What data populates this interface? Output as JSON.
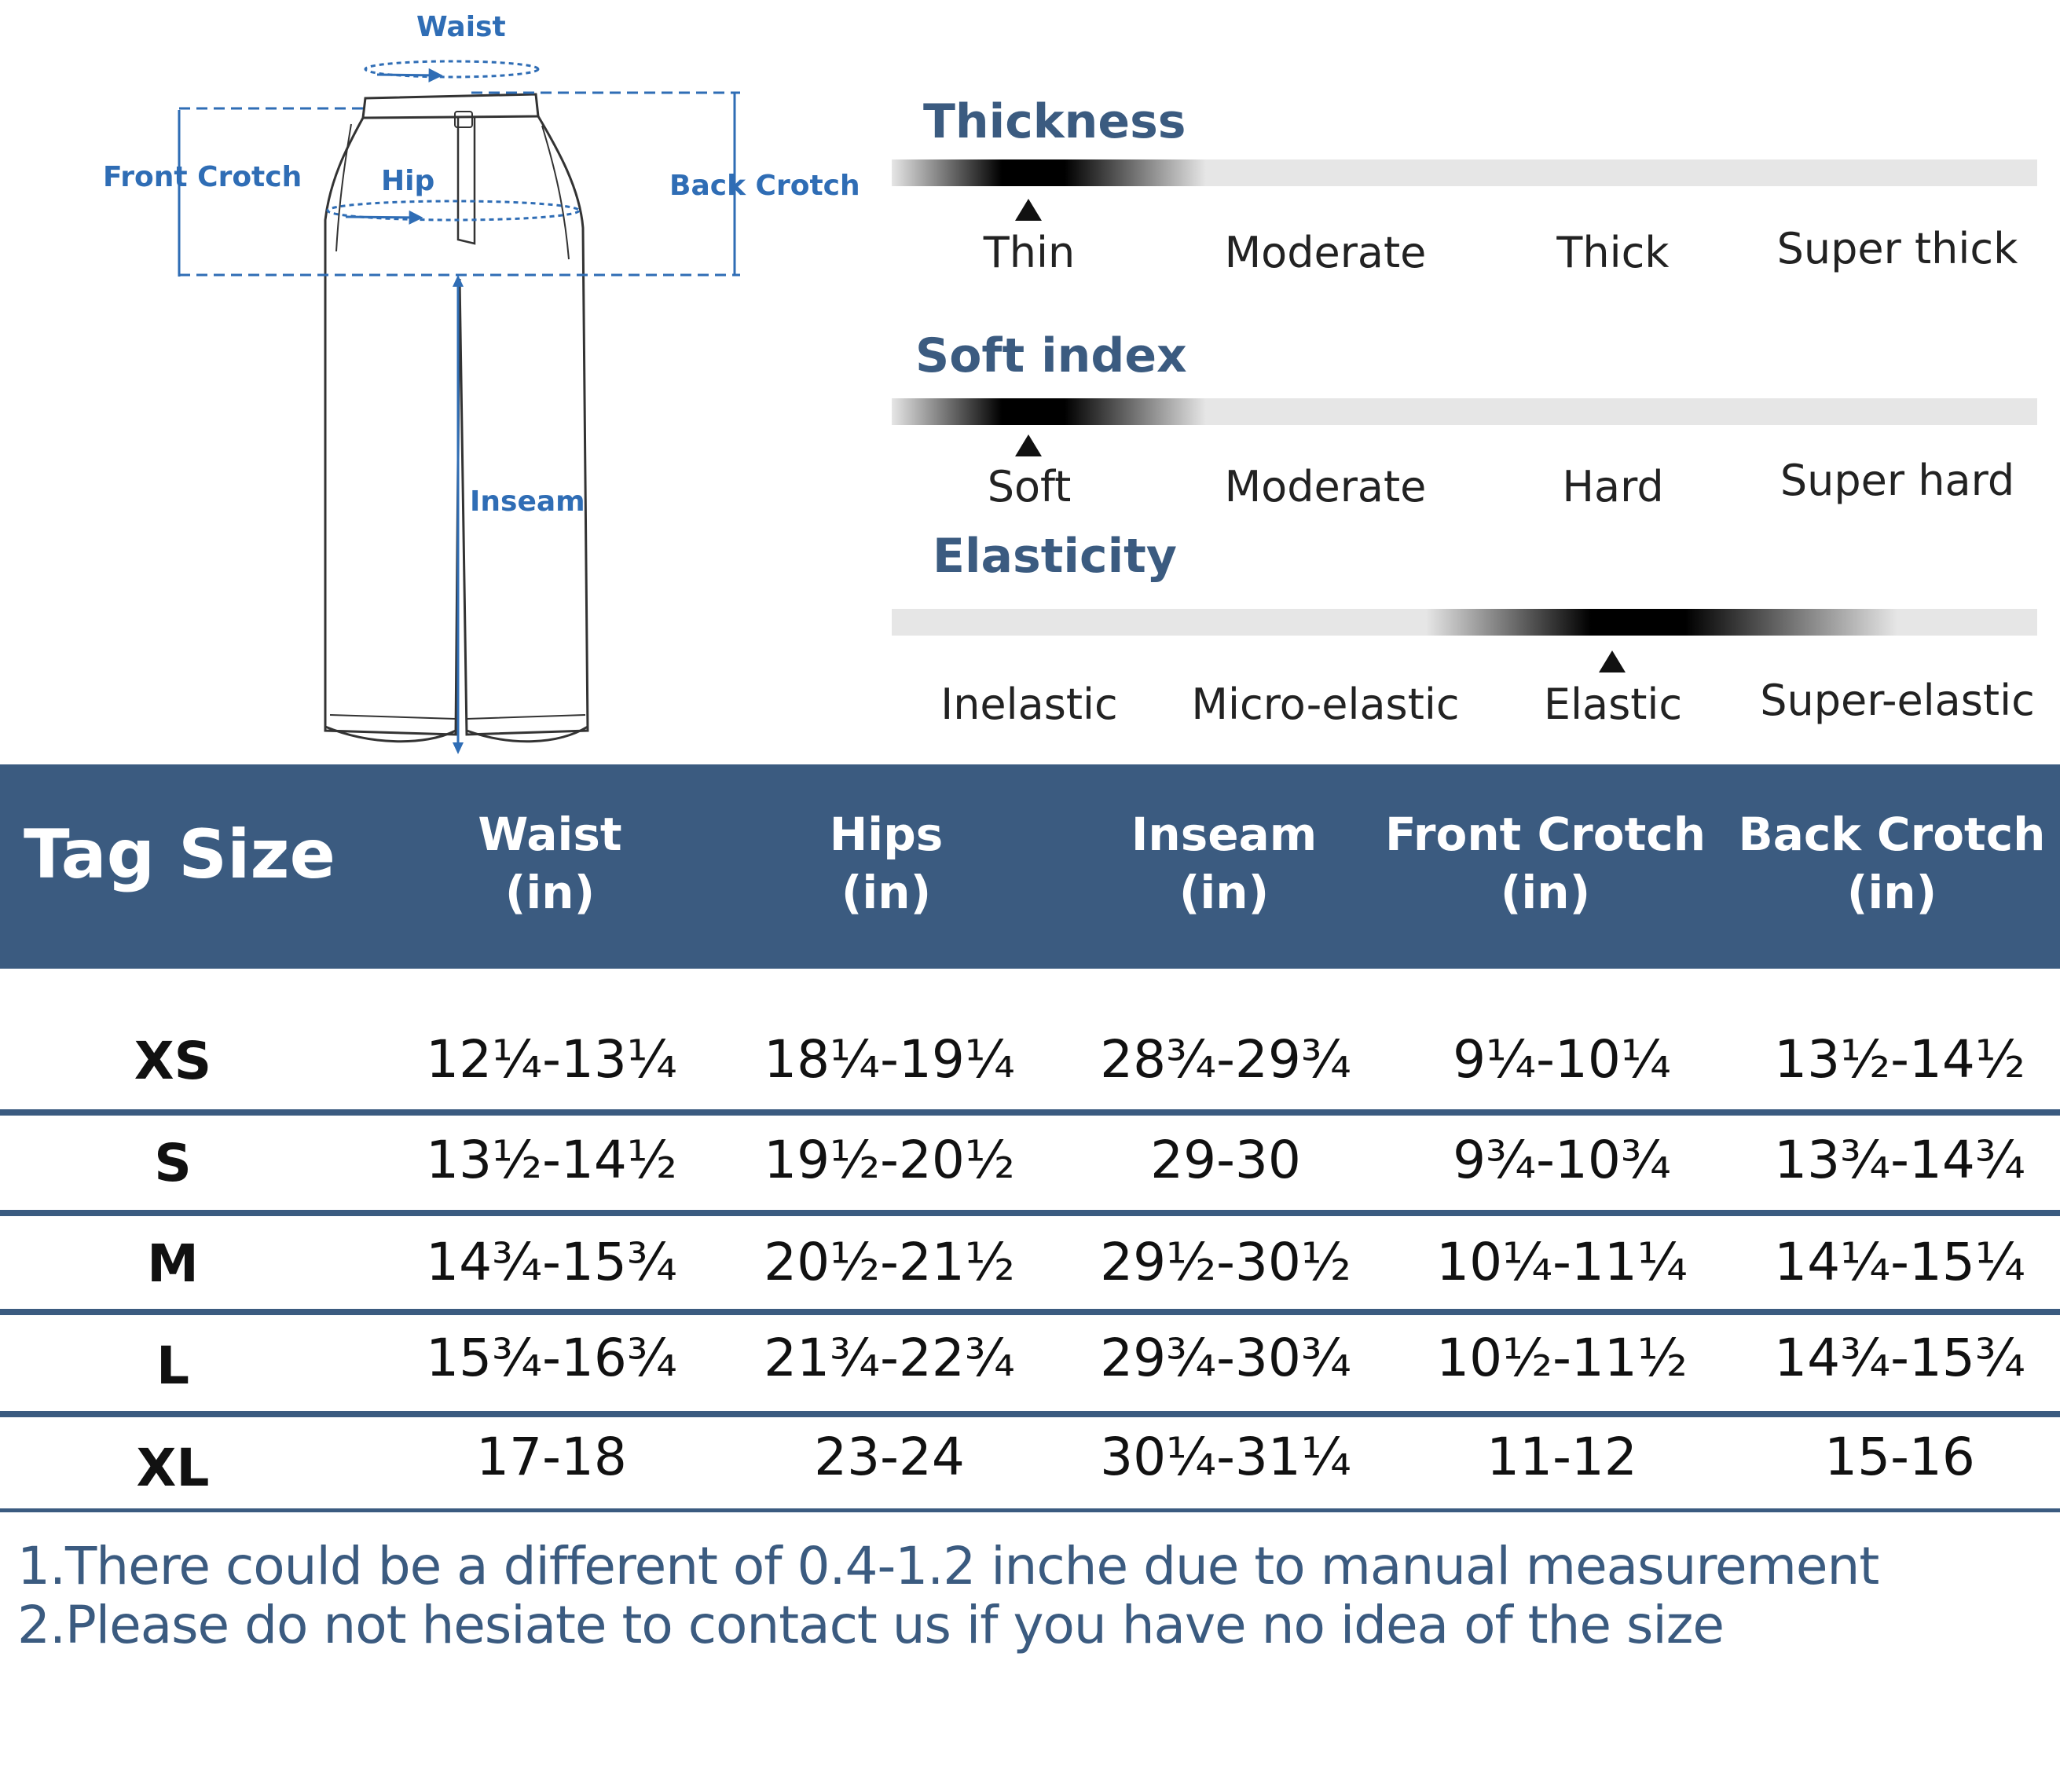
{
  "diagram": {
    "labels": {
      "waist": "Waist",
      "front_crotch": "Front Crotch",
      "hip": "Hip",
      "back_crotch": "Back Crotch",
      "inseam": "Inseam"
    },
    "colors": {
      "measure_line": "#2f6db5",
      "outline": "#333333"
    }
  },
  "scales": [
    {
      "title": "Thickness",
      "options": [
        "Thin",
        "Moderate",
        "Thick",
        "Super thick"
      ],
      "selected_index": 0
    },
    {
      "title": "Soft index",
      "options": [
        "Soft",
        "Moderate",
        "Hard",
        "Super hard"
      ],
      "selected_index": 0
    },
    {
      "title": "Elasticity",
      "options": [
        "Inelastic",
        "Micro-elastic",
        "Elastic",
        "Super-elastic"
      ],
      "selected_index": 2
    }
  ],
  "table": {
    "header": {
      "tag_size": "Tag Size",
      "columns": [
        {
          "name": "Waist",
          "unit": "(in)"
        },
        {
          "name": "Hips",
          "unit": "(in)"
        },
        {
          "name": "Inseam",
          "unit": "(in)"
        },
        {
          "name": "Front Crotch",
          "unit": "(in)"
        },
        {
          "name": "Back Crotch",
          "unit": "(in)"
        }
      ]
    },
    "rows": [
      {
        "size": "XS",
        "values": [
          "12¼-13¼",
          "18¼-19¼",
          "28¾-29¾",
          "9¼-10¼",
          "13½-14½"
        ]
      },
      {
        "size": "S",
        "values": [
          "13½-14½",
          "19½-20½",
          "29-30",
          "9¾-10¾",
          "13¾-14¾"
        ]
      },
      {
        "size": "M",
        "values": [
          "14¾-15¾",
          "20½-21½",
          "29½-30½",
          "10¼-11¼",
          "14¼-15¼"
        ]
      },
      {
        "size": "L",
        "values": [
          "15¾-16¾",
          "21¾-22¾",
          "29¾-30¾",
          "10½-11½",
          "14¾-15¾"
        ]
      },
      {
        "size": "XL",
        "values": [
          "17-18",
          "23-24",
          "30¼-31¼",
          "11-12",
          "15-16"
        ]
      }
    ],
    "colors": {
      "header_bg": "#3b5b80",
      "header_text": "#ffffff"
    }
  },
  "notes": [
    "1.There could be a different of 0.4-1.2 inche due to manual measurement",
    "2.Please do not hesiate to contact us if you have no idea of the size"
  ]
}
